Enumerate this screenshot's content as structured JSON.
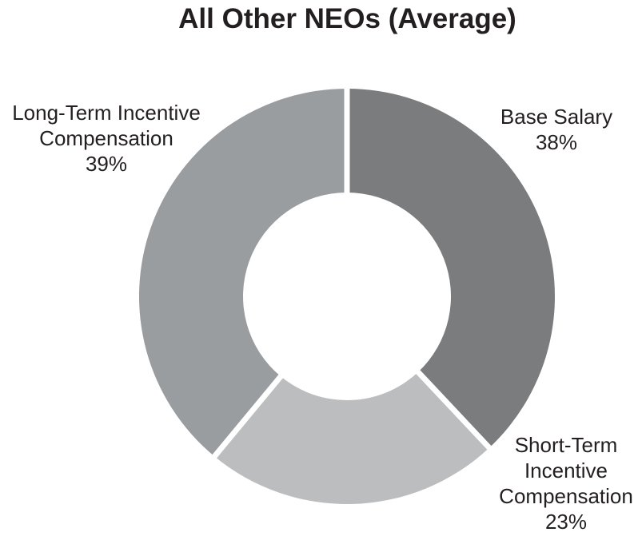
{
  "chart_data": {
    "type": "pie",
    "variant": "donut",
    "title": "All Other NEOs (Average)",
    "slices": [
      {
        "label_lines": [
          "Base Salary"
        ],
        "value": 38,
        "value_text": "38%",
        "color": "#7b7c7e"
      },
      {
        "label_lines": [
          "Short-Term",
          "Incentive",
          "Compensation"
        ],
        "value": 23,
        "value_text": "23%",
        "color": "#bcbdbe"
      },
      {
        "label_lines": [
          "Long-Term Incentive",
          "Compensation"
        ],
        "value": 39,
        "value_text": "39%",
        "color": "#9a9d9f"
      }
    ],
    "start_angle": "12 o'clock",
    "direction": "clockwise",
    "legend": "none"
  }
}
